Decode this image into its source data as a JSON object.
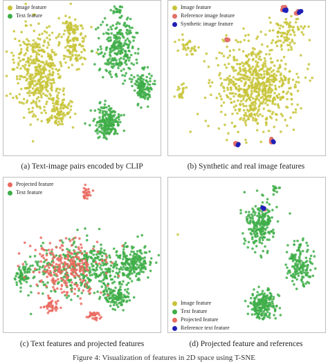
{
  "figure": {
    "caption": "Figure 4: Visualization of features in 2D space using T-SNE"
  },
  "colors": {
    "image_feature": "#c8c43a",
    "text_feature": "#3fae49",
    "reference_image_feature": "#e0706a",
    "synthetic_image_feature": "#1f1fb8",
    "projected_feature": "#ea6a60",
    "reference_text_feature": "#1f1fb8"
  },
  "panels": [
    {
      "caption": "(a) Text-image pairs encoded by CLIP",
      "legend": [
        {
          "label": "Image feature",
          "color": "#c8c43a"
        },
        {
          "label": "Text feature",
          "color": "#3fae49"
        }
      ],
      "chart_data": {
        "type": "scatter",
        "title": "",
        "xlabel": "",
        "ylabel": "",
        "grid": false,
        "legend_position": "top-left",
        "series": [
          {
            "name": "Image feature",
            "color": "#c8c43a",
            "clusters": [
              [
                0.22,
                0.45,
                0.14,
                0.25,
                420
              ],
              [
                0.45,
                0.28,
                0.08,
                0.12,
                120
              ],
              [
                0.35,
                0.7,
                0.08,
                0.1,
                100
              ],
              [
                0.42,
                0.17,
                0.03,
                0.04,
                30
              ]
            ]
          },
          {
            "name": "Text feature",
            "color": "#3fae49",
            "clusters": [
              [
                0.72,
                0.3,
                0.1,
                0.18,
                260
              ],
              [
                0.66,
                0.78,
                0.07,
                0.08,
                220
              ],
              [
                0.88,
                0.55,
                0.05,
                0.09,
                130
              ],
              [
                0.72,
                0.06,
                0.03,
                0.03,
                20
              ]
            ]
          }
        ]
      }
    },
    {
      "caption": "(b) Synthetic and real image features",
      "legend": [
        {
          "label": "Image feature",
          "color": "#c8c43a"
        },
        {
          "label": "Reference image feature",
          "color": "#e0706a"
        },
        {
          "label": "Synthetic image feature",
          "color": "#1f1fb8"
        }
      ],
      "chart_data": {
        "type": "scatter",
        "title": "",
        "xlabel": "",
        "ylabel": "",
        "grid": false,
        "legend_position": "top-left",
        "series": [
          {
            "name": "Image feature",
            "color": "#c8c43a",
            "clusters": [
              [
                0.55,
                0.55,
                0.22,
                0.25,
                650
              ],
              [
                0.12,
                0.3,
                0.05,
                0.05,
                30
              ],
              [
                0.08,
                0.58,
                0.03,
                0.04,
                20
              ],
              [
                0.75,
                0.2,
                0.1,
                0.1,
                80
              ]
            ]
          },
          {
            "name": "Reference image feature",
            "color": "#e0706a",
            "clusters": [
              [
                0.73,
                0.05,
                0.01,
                0.012,
                5
              ],
              [
                0.81,
                0.07,
                0.01,
                0.012,
                5
              ],
              [
                0.43,
                0.92,
                0.01,
                0.012,
                4
              ],
              [
                0.65,
                0.9,
                0.01,
                0.012,
                4
              ],
              [
                0.37,
                0.25,
                0.008,
                0.01,
                3
              ]
            ]
          },
          {
            "name": "Synthetic image feature",
            "color": "#1f1fb8",
            "clusters": [
              [
                0.74,
                0.06,
                0.008,
                0.008,
                3
              ],
              [
                0.83,
                0.07,
                0.008,
                0.008,
                3
              ],
              [
                0.44,
                0.92,
                0.008,
                0.008,
                2
              ],
              [
                0.66,
                0.91,
                0.008,
                0.008,
                2
              ]
            ]
          }
        ]
      }
    },
    {
      "caption": "(c) Text features and projected features",
      "legend": [
        {
          "label": "Projected feature",
          "color": "#ea6a60"
        },
        {
          "label": "Text feature",
          "color": "#3fae49"
        }
      ],
      "chart_data": {
        "type": "scatter",
        "title": "",
        "xlabel": "",
        "ylabel": "",
        "grid": false,
        "legend_position": "top-left",
        "series": [
          {
            "name": "Text feature",
            "color": "#3fae49",
            "clusters": [
              [
                0.5,
                0.58,
                0.3,
                0.15,
                450
              ],
              [
                0.82,
                0.55,
                0.08,
                0.1,
                160
              ],
              [
                0.72,
                0.76,
                0.08,
                0.06,
                120
              ],
              [
                0.12,
                0.62,
                0.05,
                0.06,
                60
              ]
            ]
          },
          {
            "name": "Projected feature",
            "color": "#ea6a60",
            "clusters": [
              [
                0.4,
                0.58,
                0.2,
                0.15,
                260
              ],
              [
                0.52,
                0.1,
                0.03,
                0.04,
                25
              ],
              [
                0.57,
                0.88,
                0.04,
                0.03,
                30
              ],
              [
                0.3,
                0.82,
                0.05,
                0.05,
                40
              ]
            ]
          }
        ]
      }
    },
    {
      "caption": "(d) Projected feature and references",
      "legend": [
        {
          "label": "Image feature",
          "color": "#c8c43a"
        },
        {
          "label": "Text feature",
          "color": "#3fae49"
        },
        {
          "label": "Projected feature",
          "color": "#ea6a60"
        },
        {
          "label": "Reference text feature",
          "color": "#1f1fb8"
        }
      ],
      "chart_data": {
        "type": "scatter",
        "title": "",
        "xlabel": "",
        "ylabel": "",
        "grid": false,
        "legend_position": "bottom-left",
        "series": [
          {
            "name": "Text feature",
            "color": "#3fae49",
            "clusters": [
              [
                0.58,
                0.3,
                0.08,
                0.14,
                220
              ],
              [
                0.83,
                0.55,
                0.07,
                0.12,
                150
              ],
              [
                0.6,
                0.82,
                0.08,
                0.08,
                200
              ],
              [
                0.68,
                0.08,
                0.02,
                0.03,
                12
              ]
            ]
          },
          {
            "name": "Image feature",
            "color": "#c8c43a",
            "clusters": [
              [
                0.06,
                0.36,
                0.005,
                0.005,
                1
              ]
            ]
          },
          {
            "name": "Projected feature",
            "color": "#ea6a60",
            "clusters": [
              [
                0.61,
                0.21,
                0.006,
                0.006,
                2
              ]
            ]
          },
          {
            "name": "Reference text feature",
            "color": "#1f1fb8",
            "clusters": [
              [
                0.6,
                0.2,
                0.008,
                0.008,
                3
              ]
            ]
          }
        ]
      }
    }
  ]
}
